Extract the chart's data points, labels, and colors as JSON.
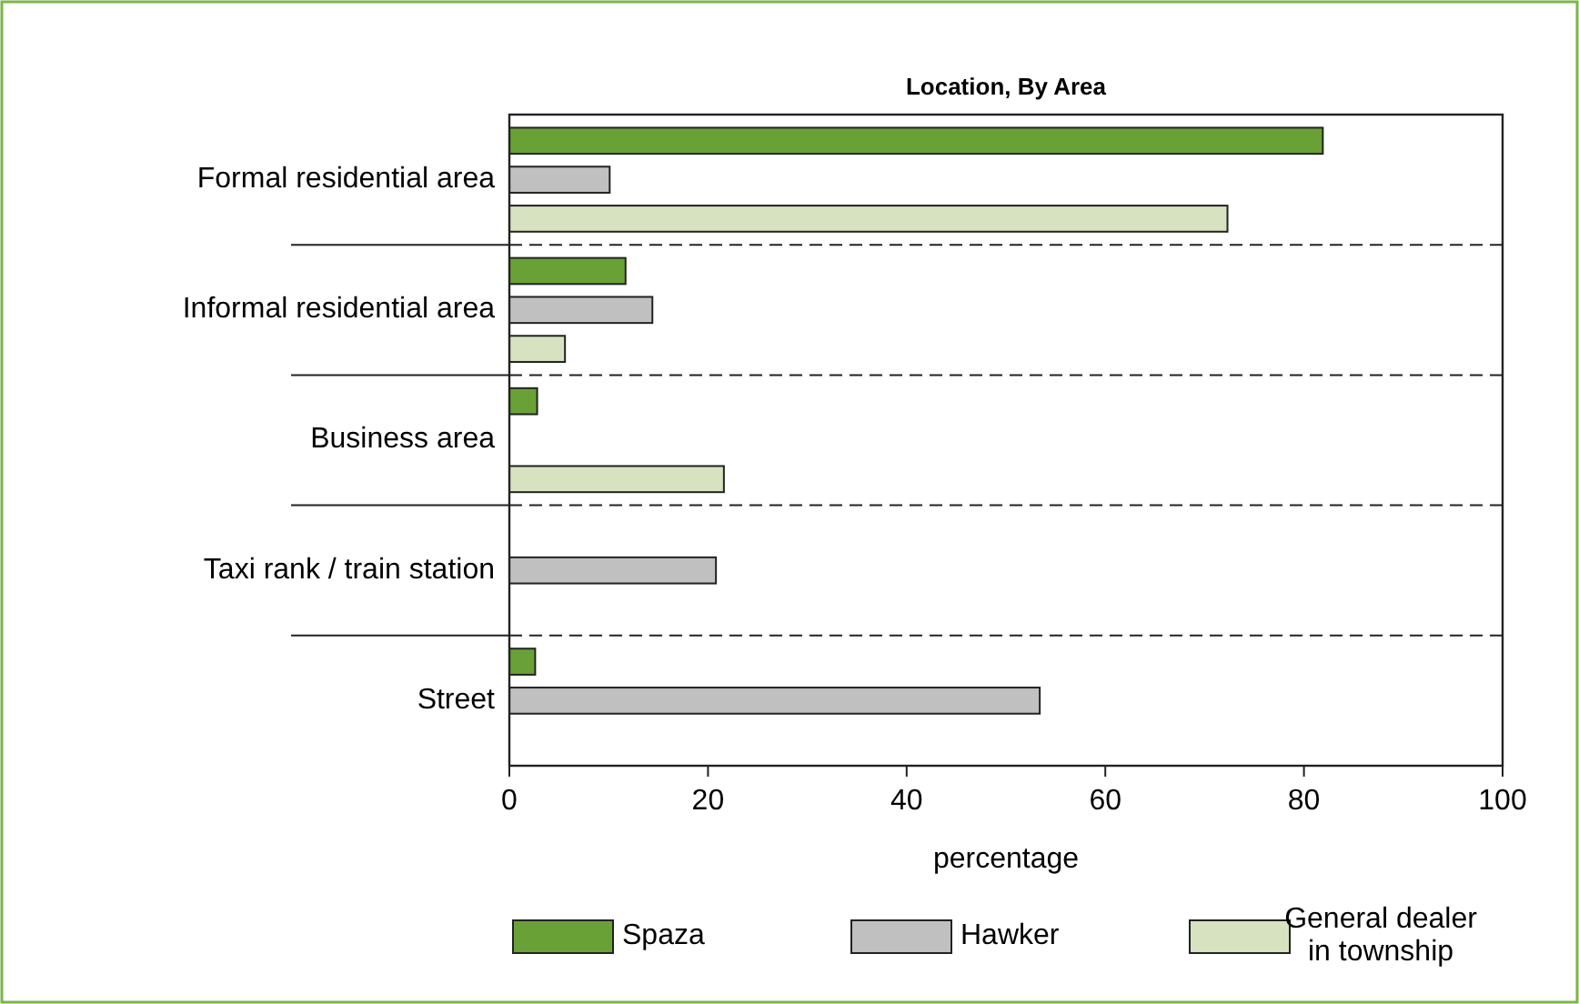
{
  "chart_data": {
    "type": "bar",
    "orientation": "horizontal",
    "title": "Location, By Area",
    "xlabel": "percentage",
    "categories": [
      "Formal residential area",
      "Informal residential area",
      "Business area",
      "Taxi rank / train station",
      "Street"
    ],
    "series": [
      {
        "name": "Spaza",
        "color": "#6aa136",
        "values": [
          81.9,
          11.7,
          2.8,
          null,
          2.6
        ]
      },
      {
        "name": "Hawker",
        "color": "#c0c0c0",
        "values": [
          10.1,
          14.4,
          null,
          20.8,
          53.4
        ]
      },
      {
        "name": "General dealer in township",
        "color": "#d6e2c0",
        "values": [
          72.3,
          5.6,
          21.6,
          null,
          null
        ]
      }
    ],
    "xlim": [
      0,
      100
    ],
    "xticks": [
      0,
      20,
      40,
      60,
      80,
      100
    ],
    "legend": "bottom",
    "grid": false
  }
}
